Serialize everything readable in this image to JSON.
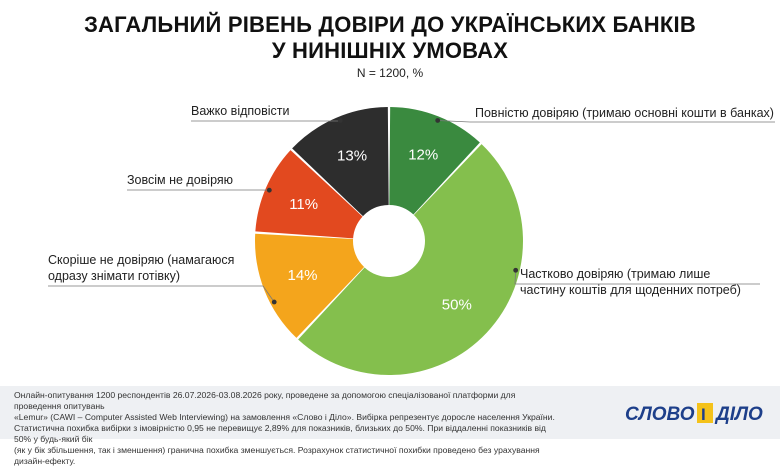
{
  "header": {
    "title_line1": "ЗАГАЛЬНИЙ РІВЕНЬ ДОВІРИ ДО УКРАЇНСЬКИХ БАНКІВ",
    "title_line2": "У НИНІШНІХ УМОВАХ",
    "subtitle": "N = 1200, %"
  },
  "chart_data": {
    "type": "pie",
    "title": "ЗАГАЛЬНИЙ РІВЕНЬ ДОВІРИ ДО УКРАЇНСЬКИХ БАНКІВ У НИНІШНІХ УМОВАХ",
    "subtitle": "N = 1200, %",
    "donut": true,
    "slices": [
      {
        "label": "Повністю довіряю (тримаю основні кошти в банках)",
        "value": 12,
        "value_label": "12%",
        "color": "#3a8a3f"
      },
      {
        "label": "Частково довіряю (тримаю лише частину коштів для щоденних потреб)",
        "value": 50,
        "value_label": "50%",
        "color": "#84bf4d"
      },
      {
        "label": "Скоріше не довіряю (намагаюся одразу знімати готівку)",
        "value": 14,
        "value_label": "14%",
        "color": "#f4a51c"
      },
      {
        "label": "Зовсім не довіряю",
        "value": 11,
        "value_label": "11%",
        "color": "#e2491f"
      },
      {
        "label": "Важко відповісти",
        "value": 13,
        "value_label": "13%",
        "color": "#2d2d2d"
      }
    ]
  },
  "labels": {
    "full_trust": "Повністю довіряю (тримаю основні кошти в банках)",
    "partial_trust_l1": "Частково довіряю (тримаю лише",
    "partial_trust_l2": "частину коштів для щоденних потреб)",
    "rather_not_l1": "Скоріше не довіряю (намагаюся",
    "rather_not_l2": "одразу знімати готівку)",
    "not_at_all": "Зовсім не довіряю",
    "hard_to_say": "Важко відповісти"
  },
  "footer": {
    "note_line1": "Онлайн-опитування 1200 респондентів 26.07.2026-03.08.2026 року, проведене за допомогою спеціалізованої платформи для проведення опитувань",
    "note_line2": "«Lemur» (CAWI – Computer Assisted Web Interviewing) на замовлення «Слово і Діло». Вибірка репрезентує доросле населення України.",
    "note_line3": "Статистична похибка вибірки з імовірністю 0,95 не перевищує 2,89% для показників, близьких до 50%. При віддаленні показників від 50% у будь-який бік",
    "note_line4": "(як у бік збільшення, так і зменшення) гранична похибка зменшується. Розрахунок статистичної похибки проведено без урахування дизайн-ефекту.",
    "logo_text": "СЛОВО І ДІЛО"
  }
}
